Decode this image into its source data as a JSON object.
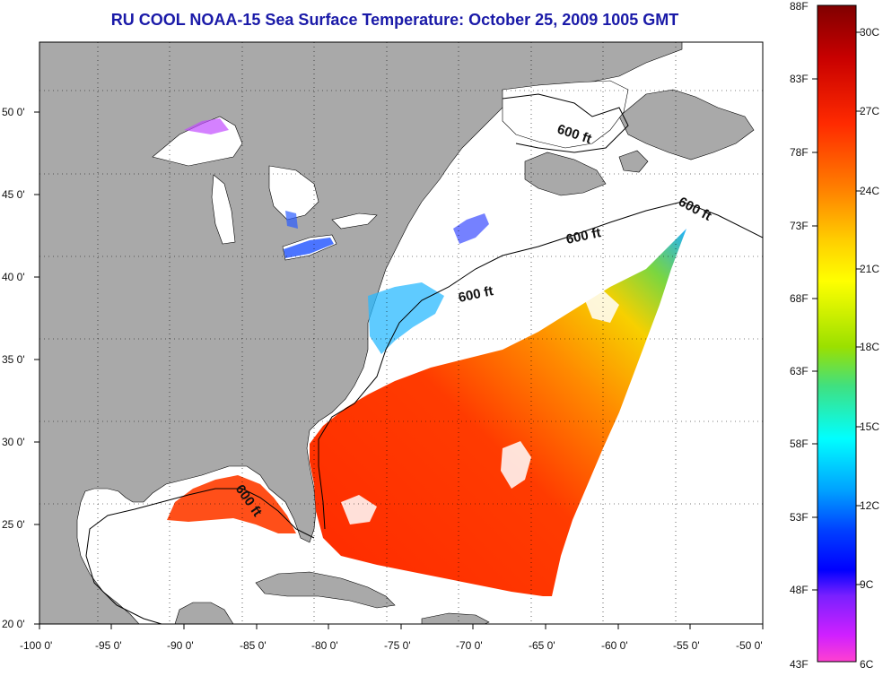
{
  "title": "RU COOL  NOAA-15  Sea Surface Temperature:  October 25, 2009 1005 GMT",
  "map": {
    "lon_ticks": [
      "-100 0'",
      "-95 0'",
      "-90 0'",
      "-85 0'",
      "-80 0'",
      "-75 0'",
      "-70 0'",
      "-65 0'",
      "-60 0'",
      "-55 0'",
      "-50 0'"
    ],
    "lat_ticks": [
      "50 0'",
      "45 0'",
      "40 0'",
      "35 0'",
      "30 0'",
      "25 0'",
      "20 0'"
    ],
    "contour_labels": [
      "600 ft",
      "600 ft",
      "600 ft",
      "600 ft",
      "600 ft"
    ],
    "land_color": "#a9a9a9",
    "cloud_color": "#ffffff"
  },
  "colorbar": {
    "fahrenheit": [
      "88F",
      "83F",
      "78F",
      "73F",
      "68F",
      "63F",
      "58F",
      "53F",
      "48F",
      "43F"
    ],
    "celsius": [
      "30C",
      "27C",
      "24C",
      "21C",
      "18C",
      "15C",
      "12C",
      "9C",
      "6C"
    ]
  }
}
